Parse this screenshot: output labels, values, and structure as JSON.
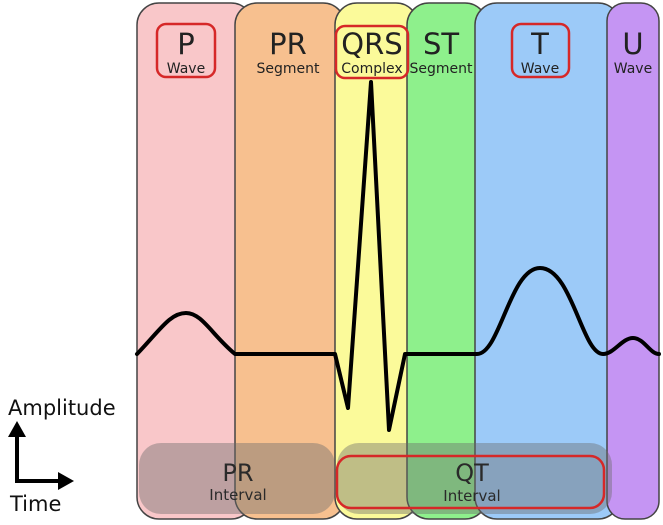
{
  "segments": [
    {
      "title": "P",
      "subtitle": "Wave",
      "color": "#f9c7c9",
      "highlighted": true
    },
    {
      "title": "PR",
      "subtitle": "Segment",
      "color": "#f7c08f",
      "highlighted": false
    },
    {
      "title": "QRS",
      "subtitle": "Complex",
      "color": "#fbfa9a",
      "highlighted": true
    },
    {
      "title": "ST",
      "subtitle": "Segment",
      "color": "#8ef08c",
      "highlighted": false
    },
    {
      "title": "T",
      "subtitle": "Wave",
      "color": "#9ccaf8",
      "highlighted": true
    },
    {
      "title": "U",
      "subtitle": "Wave",
      "color": "#c595f3",
      "highlighted": false
    }
  ],
  "intervals": [
    {
      "title": "PR",
      "subtitle": "Interval",
      "highlighted": false
    },
    {
      "title": "QT",
      "subtitle": "Interval",
      "highlighted": true
    }
  ],
  "axes": {
    "y_label": "Amplitude",
    "x_label": "Time"
  },
  "colors": {
    "highlight": "#d62828",
    "trace": "#000000",
    "interval_band": "#6b6b6b"
  }
}
